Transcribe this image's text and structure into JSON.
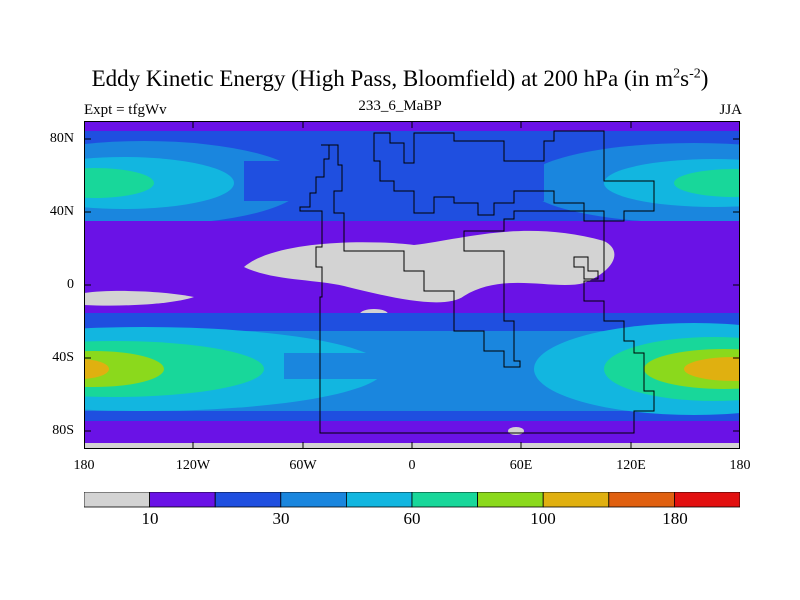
{
  "title": {
    "main": "Eddy Kinetic Energy (High Pass, Bloomfield) at 200 hPa (in m",
    "sup1": "2",
    "mid": "s",
    "sup2": "-2",
    "end": ")"
  },
  "subtitle": {
    "left": "Expt = tfgWv",
    "center": "233_6_MaBP",
    "right": "JJA"
  },
  "lat_labels": [
    "80N",
    "40N",
    "0",
    "40S",
    "80S"
  ],
  "lon_labels": [
    "180",
    "120W",
    "60W",
    "0",
    "60E",
    "120E",
    "180"
  ],
  "colorbar": {
    "colors": [
      "#d3d3d3",
      "#6a12e6",
      "#1f4fe0",
      "#1a86de",
      "#12b6e0",
      "#18d79a",
      "#8bd91c",
      "#e0b010",
      "#e06010",
      "#e21010"
    ],
    "labels": [
      "10",
      "30",
      "60",
      "100",
      "180"
    ]
  },
  "palette": {
    "land_outline": "#000000",
    "frame": "#000000"
  }
}
